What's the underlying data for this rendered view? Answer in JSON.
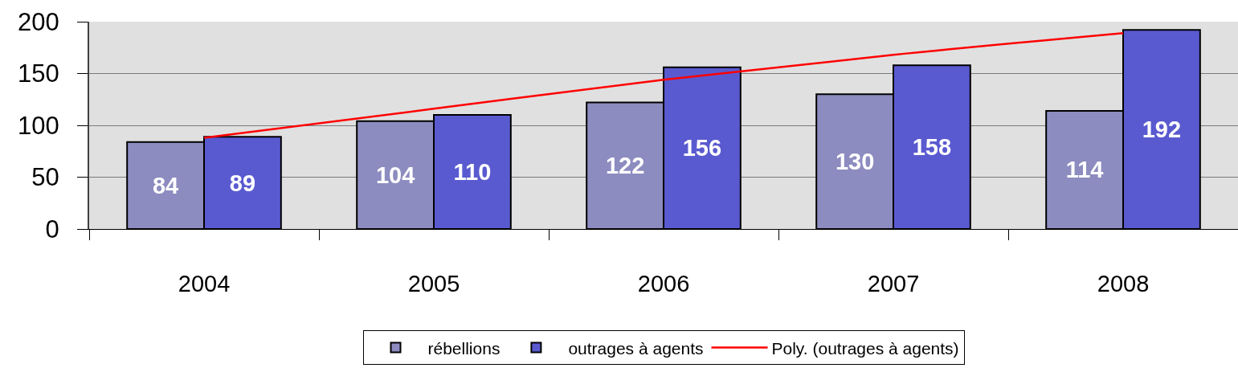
{
  "chart_data": {
    "type": "bar",
    "categories": [
      "2004",
      "2005",
      "2006",
      "2007",
      "2008"
    ],
    "series": [
      {
        "name": "rébellions",
        "color": "#8c8cc0",
        "values": [
          84,
          104,
          122,
          130,
          114
        ],
        "value_labels": [
          "84",
          "104",
          "122",
          "130",
          "114"
        ]
      },
      {
        "name": "outrages à agents",
        "color": "#5a5ad0",
        "values": [
          89,
          110,
          156,
          158,
          192
        ],
        "value_labels": [
          "89",
          "110",
          "156",
          "158",
          "192"
        ]
      },
      {
        "name": "Poly. (outrages à agents)",
        "type": "line",
        "color": "#ff0000",
        "values": [
          88,
          116,
          144,
          168,
          189
        ]
      }
    ],
    "ylim": [
      0,
      200
    ],
    "yticks": [
      0,
      50,
      100,
      150,
      200
    ],
    "grid": "y",
    "legend": "bottom"
  }
}
